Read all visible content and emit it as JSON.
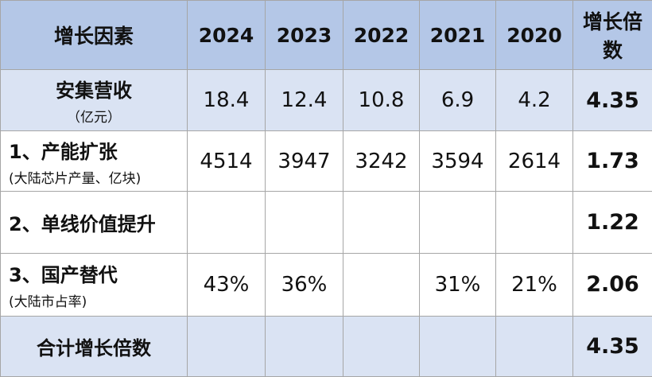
{
  "table": {
    "header": [
      "增长因素",
      "2024",
      "2023",
      "2022",
      "2021",
      "2020",
      "增长倍数"
    ],
    "rows": [
      {
        "label": "安集营收",
        "sublabel": "（亿元）",
        "cells": [
          "18.4",
          "12.4",
          "10.8",
          "6.9",
          "4.2"
        ],
        "multiple": "4.35"
      },
      {
        "label": "1、产能扩张",
        "sublabel": "(大陆芯片产量、亿块)",
        "cells": [
          "4514",
          "3947",
          "3242",
          "3594",
          "2614"
        ],
        "multiple": "1.73"
      },
      {
        "label": "2、单线价值提升",
        "sublabel": null,
        "cells": [
          null,
          null,
          null,
          null,
          null
        ],
        "multiple": "1.22"
      },
      {
        "label": "3、国产替代",
        "sublabel": "(大陆市占率)",
        "cells": [
          "43%",
          "36%",
          null,
          "31%",
          "21%"
        ],
        "multiple": "2.06"
      },
      {
        "label": "合计增长倍数",
        "sublabel": null,
        "cells": [
          null,
          null,
          null,
          null,
          null
        ],
        "multiple": "4.35"
      }
    ]
  }
}
